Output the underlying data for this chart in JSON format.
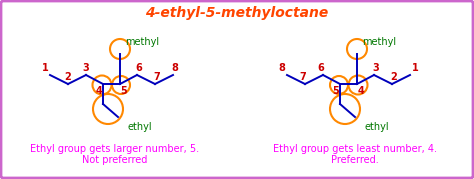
{
  "title": "4-ethyl-5-methyloctane",
  "title_color": "#FF4500",
  "bg_color": "#FFFFFF",
  "border_color": "#CC66CC",
  "line_color": "#0000BB",
  "number_color": "#CC0000",
  "methyl_color": "#007700",
  "ethyl_color": "#007700",
  "circle_color": "#FF8800",
  "caption_color": "#FF00FF",
  "left_caption1": "Ethyl group gets larger number, 5.",
  "left_caption2": "Not preferred",
  "right_caption1": "Ethyl group gets least number, 4.",
  "right_caption2": "Preferred.",
  "font_size_title": 10,
  "font_size_labels": 7,
  "font_size_caption": 7
}
